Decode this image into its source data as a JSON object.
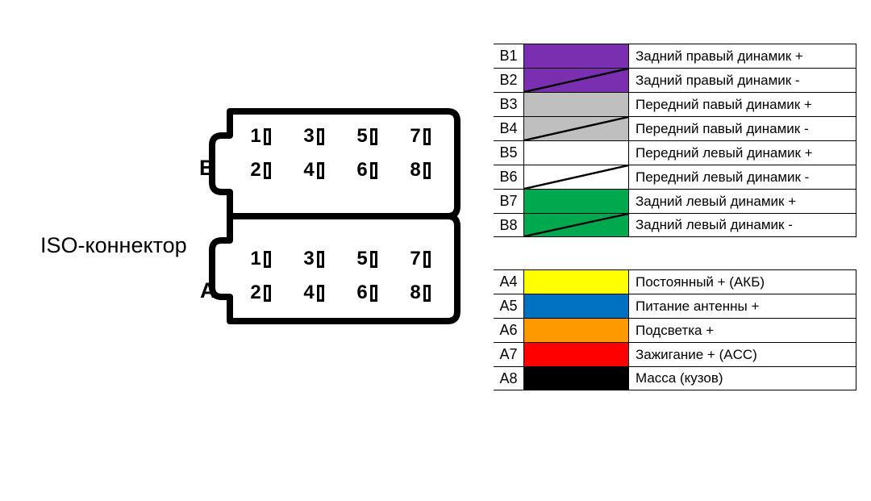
{
  "title": "ISO-коннектор",
  "ports": {
    "b_label": "B",
    "a_label": "A"
  },
  "pins": {
    "b": [
      "1",
      "3",
      "5",
      "7",
      "2",
      "4",
      "6",
      "8"
    ],
    "a": [
      "1",
      "3",
      "5",
      "7",
      "2",
      "4",
      "6",
      "8"
    ]
  },
  "legend_groups": [
    [
      {
        "code": "B1",
        "color": "#7a2fb0",
        "slash": false,
        "desc": "Задний правый динамик +"
      },
      {
        "code": "B2",
        "color": "#7a2fb0",
        "slash": true,
        "desc": "Задний правый динамик -"
      },
      {
        "code": "B3",
        "color": "#bfbfbf",
        "slash": false,
        "desc": "Передний павый динамик +"
      },
      {
        "code": "B4",
        "color": "#bfbfbf",
        "slash": true,
        "desc": "Передний павый динамик -"
      },
      {
        "code": "B5",
        "color": "#ffffff",
        "slash": false,
        "desc": "Передний левый динамик +"
      },
      {
        "code": "B6",
        "color": "#ffffff",
        "slash": true,
        "desc": "Передний левый динамик -"
      },
      {
        "code": "B7",
        "color": "#00a94e",
        "slash": false,
        "desc": "Задний левый динамик +"
      },
      {
        "code": "B8",
        "color": "#00a94e",
        "slash": true,
        "desc": "Задний левый динамик -"
      }
    ],
    [
      {
        "code": "A4",
        "color": "#ffff00",
        "slash": false,
        "desc": "Постоянный + (АКБ)"
      },
      {
        "code": "A5",
        "color": "#0070c0",
        "slash": false,
        "desc": "Питание антенны +"
      },
      {
        "code": "A6",
        "color": "#ff9900",
        "slash": false,
        "desc": "Подсветка +"
      },
      {
        "code": "A7",
        "color": "#ff0000",
        "slash": false,
        "desc": "Зажигание + (ACC)"
      },
      {
        "code": "A8",
        "color": "#000000",
        "slash": false,
        "desc": "Масса (кузов)"
      }
    ]
  ],
  "styles": {
    "connector_stroke": "#000000",
    "connector_stroke_width": 8,
    "slash_stroke": "#000000",
    "slash_width": 2.5
  }
}
